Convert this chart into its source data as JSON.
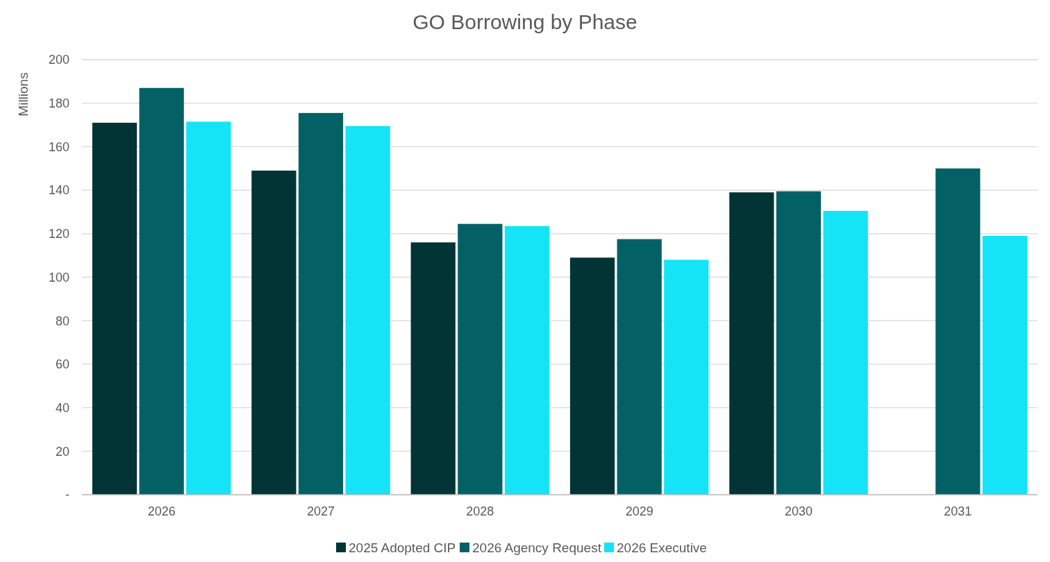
{
  "chart_data": {
    "type": "bar",
    "title": "GO Borrowing by Phase",
    "ylabel": "Millions",
    "categories": [
      "2026",
      "2027",
      "2028",
      "2029",
      "2030",
      "2031"
    ],
    "series": [
      {
        "name": "2025 Adopted CIP",
        "color": "#023436",
        "values": [
          171,
          149,
          116,
          109,
          139,
          null
        ]
      },
      {
        "name": "2026 Agency Request",
        "color": "#036166",
        "values": [
          187,
          175.5,
          124.5,
          117.5,
          139.5,
          150
        ]
      },
      {
        "name": "2026 Executive",
        "color": "#15e4f6",
        "values": [
          171.5,
          169.5,
          123.5,
          108,
          130.5,
          119
        ]
      }
    ],
    "ylim": [
      0,
      200
    ],
    "yticks": [
      {
        "value": 0,
        "label": "-"
      },
      20,
      40,
      60,
      80,
      100,
      120,
      140,
      160,
      180,
      200
    ],
    "grid": "y",
    "legend": "bottom"
  }
}
